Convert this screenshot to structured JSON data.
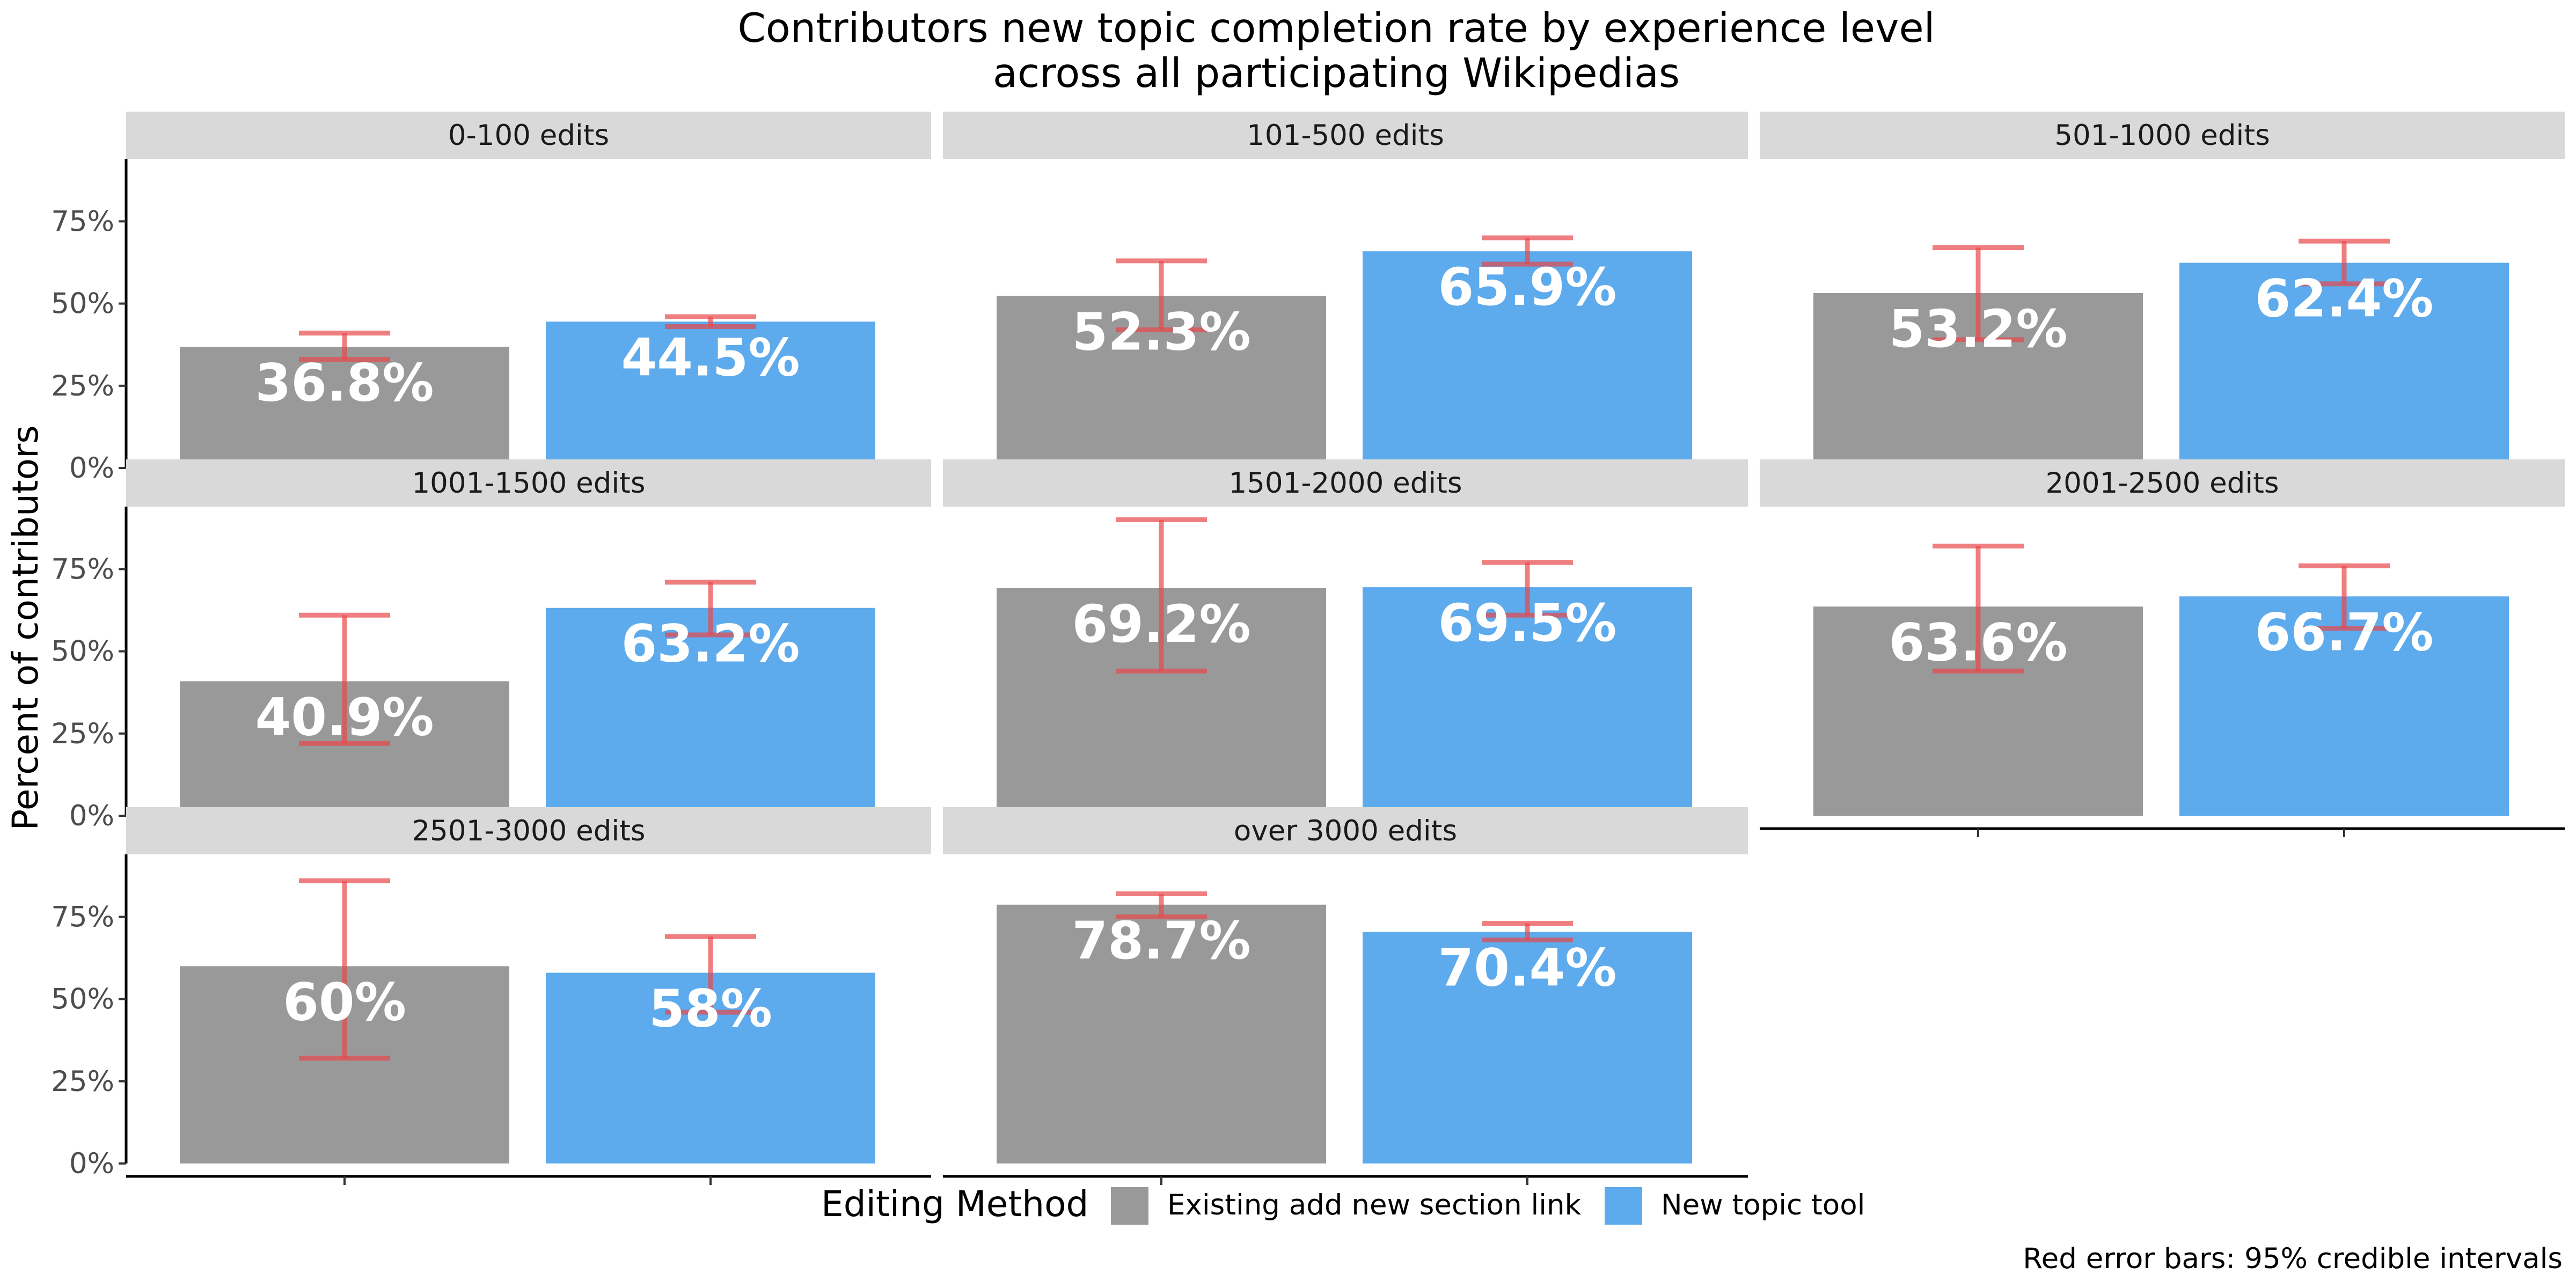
{
  "title_line1": "Contributors new topic completion rate by experience level",
  "title_line2": "across all participating Wikipedias",
  "ylabel": "Percent of contributors",
  "legend_title": "Editing Method",
  "caption": "Red error bars: 95% credible intervals",
  "colors": {
    "existing": "#999999",
    "new_tool": "#5DABEC",
    "error_bar": "#E8474C",
    "strip": "#D9D9D9"
  },
  "chart_data": {
    "type": "bar",
    "facet_by": "experience level",
    "categories": [
      "Existing add new section link",
      "New topic tool"
    ],
    "ylim": [
      0,
      0.94
    ],
    "y_ticks": [
      0,
      0.25,
      0.5,
      0.75
    ],
    "y_tick_labels": [
      "0%",
      "25%",
      "50%",
      "75%"
    ],
    "legend_position": "bottom",
    "grid": false,
    "facets": [
      {
        "label": "0-100 edits",
        "values": [
          0.368,
          0.445
        ],
        "value_labels": [
          "36.8%",
          "44.5%"
        ],
        "ci": [
          [
            0.33,
            0.41
          ],
          [
            0.43,
            0.46
          ]
        ]
      },
      {
        "label": "101-500 edits",
        "values": [
          0.523,
          0.659
        ],
        "value_labels": [
          "52.3%",
          "65.9%"
        ],
        "ci": [
          [
            0.42,
            0.63
          ],
          [
            0.62,
            0.7
          ]
        ]
      },
      {
        "label": "501-1000 edits",
        "values": [
          0.532,
          0.624
        ],
        "value_labels": [
          "53.2%",
          "62.4%"
        ],
        "ci": [
          [
            0.39,
            0.67
          ],
          [
            0.56,
            0.69
          ]
        ]
      },
      {
        "label": "1001-1500 edits",
        "values": [
          0.409,
          0.632
        ],
        "value_labels": [
          "40.9%",
          "63.2%"
        ],
        "ci": [
          [
            0.22,
            0.61
          ],
          [
            0.55,
            0.71
          ]
        ]
      },
      {
        "label": "1501-2000 edits",
        "values": [
          0.692,
          0.695
        ],
        "value_labels": [
          "69.2%",
          "69.5%"
        ],
        "ci": [
          [
            0.44,
            0.9
          ],
          [
            0.61,
            0.77
          ]
        ]
      },
      {
        "label": "2001-2500 edits",
        "values": [
          0.636,
          0.667
        ],
        "value_labels": [
          "63.6%",
          "66.7%"
        ],
        "ci": [
          [
            0.44,
            0.82
          ],
          [
            0.57,
            0.76
          ]
        ]
      },
      {
        "label": "2501-3000 edits",
        "values": [
          0.6,
          0.58
        ],
        "value_labels": [
          "60%",
          "58%"
        ],
        "ci": [
          [
            0.32,
            0.86
          ],
          [
            0.46,
            0.69
          ]
        ]
      },
      {
        "label": "over 3000 edits",
        "values": [
          0.787,
          0.704
        ],
        "value_labels": [
          "78.7%",
          "70.4%"
        ],
        "ci": [
          [
            0.75,
            0.82
          ],
          [
            0.68,
            0.73
          ]
        ]
      }
    ]
  }
}
